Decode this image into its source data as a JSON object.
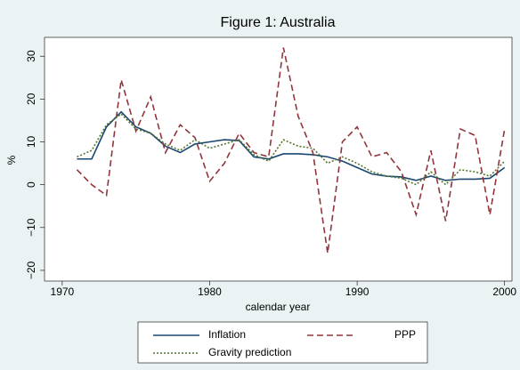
{
  "chart_data": {
    "type": "line",
    "title": "Figure 1: Australia",
    "x_label": "calendar year",
    "y_label": "%",
    "x": [
      1971,
      1972,
      1973,
      1974,
      1975,
      1976,
      1977,
      1978,
      1979,
      1980,
      1981,
      1982,
      1983,
      1984,
      1985,
      1986,
      1987,
      1988,
      1989,
      1990,
      1991,
      1992,
      1993,
      1994,
      1995,
      1996,
      1997,
      1998,
      1999,
      2000
    ],
    "series": [
      {
        "name": "Inflation",
        "color": "#1a476f",
        "style": "solid",
        "values": [
          6,
          6,
          13.5,
          17,
          13.5,
          12,
          9,
          7.5,
          9.5,
          10,
          10.5,
          10.3,
          6.5,
          6,
          7.2,
          7.2,
          7,
          6.5,
          5.5,
          4,
          2.5,
          2,
          1.8,
          1,
          2,
          1,
          1.3,
          1.3,
          1.5,
          4
        ]
      },
      {
        "name": "PPP",
        "color": "#90353b",
        "style": "dashed",
        "values": [
          3.5,
          0,
          -2.5,
          24.5,
          12.5,
          20.5,
          7.5,
          14,
          11,
          0.8,
          5,
          12,
          7.5,
          6.5,
          32,
          16,
          7.5,
          -16,
          10,
          13.5,
          6.5,
          7.5,
          3,
          -7,
          8,
          -8.5,
          13,
          11.5,
          -7,
          13
        ]
      },
      {
        "name": "Gravity prediction",
        "color": "#55752f",
        "style": "dotted",
        "values": [
          6.5,
          8,
          14,
          16.5,
          13,
          12,
          9.5,
          8,
          10.5,
          8.5,
          9.5,
          10.5,
          7,
          5.5,
          10.5,
          9,
          8.5,
          5,
          6.5,
          5,
          3,
          2,
          1.5,
          0,
          3,
          0,
          3.5,
          3,
          2,
          5.5
        ]
      }
    ],
    "xlim": [
      1968.8,
      2000.5
    ],
    "xticks": [
      1970,
      1980,
      1990,
      2000
    ],
    "ylim": [
      -22.5,
      34.4
    ],
    "yticks": [
      {
        "value": -20,
        "label": "−20"
      },
      {
        "value": -10,
        "label": "−10"
      },
      0,
      10,
      20,
      30
    ],
    "legend": "bottom"
  }
}
